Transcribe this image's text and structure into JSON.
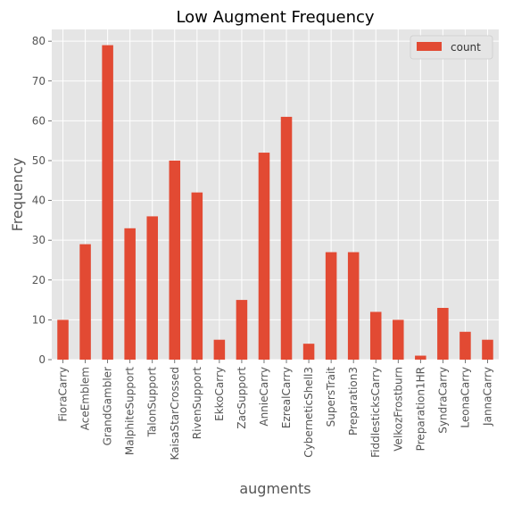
{
  "chart_data": {
    "type": "bar",
    "title": "Low Augment Frequency",
    "xlabel": "augments",
    "ylabel": "Frequency",
    "ylim": [
      0,
      82.95
    ],
    "yticks": [
      0,
      10,
      20,
      30,
      40,
      50,
      60,
      70,
      80
    ],
    "grid": true,
    "legend_position": "top-right",
    "categories": [
      "FioraCarry",
      "AceEmblem",
      "GrandGambler",
      "MalphiteSupport",
      "TalonSupport",
      "KaisaStarCrossed",
      "RivenSupport",
      "EkkoCarry",
      "ZacSupport",
      "AnnieCarry",
      "EzrealCarry",
      "CyberneticShell3",
      "SupersTrait",
      "Preparation3",
      "FiddlesticksCarry",
      "VelkozFrostburn",
      "Preparation1HR",
      "SyndraCarry",
      "LeonaCarry",
      "JannaCarry"
    ],
    "series": [
      {
        "name": "count",
        "values": [
          10,
          29,
          79,
          33,
          36,
          50,
          42,
          5,
          15,
          52,
          61,
          4,
          27,
          27,
          12,
          10,
          1,
          13,
          7,
          5
        ]
      }
    ]
  },
  "colors": {
    "bar": "#E24A33",
    "plot_background": "#E5E5E5",
    "grid": "#FFFFFF"
  }
}
